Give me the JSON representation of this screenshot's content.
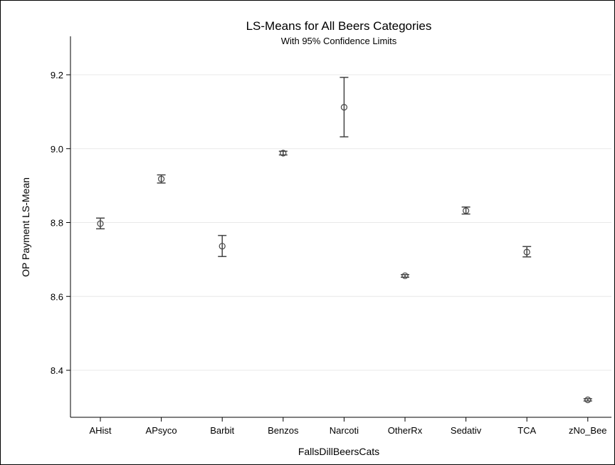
{
  "chart_data": {
    "type": "scatter",
    "title": "LS-Means for All Beers Categories",
    "subtitle": "With 95% Confidence Limits",
    "xlabel": "FallsDillBeersCats",
    "ylabel": "OP Payment LS-Mean",
    "ylim": [
      8.3,
      9.25
    ],
    "yticks": [
      8.4,
      8.6,
      8.8,
      9.0,
      9.2
    ],
    "ytick_labels": [
      "8.4",
      "8.6",
      "8.8",
      "9.0",
      "9.2"
    ],
    "grid": true,
    "categories": [
      "AHist",
      "APsyco",
      "Barbit",
      "Benzos",
      "Narcoti",
      "OtherRx",
      "Sedativ",
      "TCA",
      "zNo_Bee"
    ],
    "values": [
      8.797,
      8.918,
      8.736,
      8.988,
      9.112,
      8.656,
      8.832,
      8.72,
      8.32
    ],
    "lower": [
      8.783,
      8.907,
      8.708,
      8.983,
      9.032,
      8.652,
      8.823,
      8.707,
      8.317
    ],
    "upper": [
      8.812,
      8.929,
      8.765,
      8.993,
      9.193,
      8.659,
      8.842,
      8.735,
      8.323
    ]
  },
  "colors": {
    "marker": "#444444",
    "grid": "#e8e8e8",
    "axis": "#000000"
  }
}
